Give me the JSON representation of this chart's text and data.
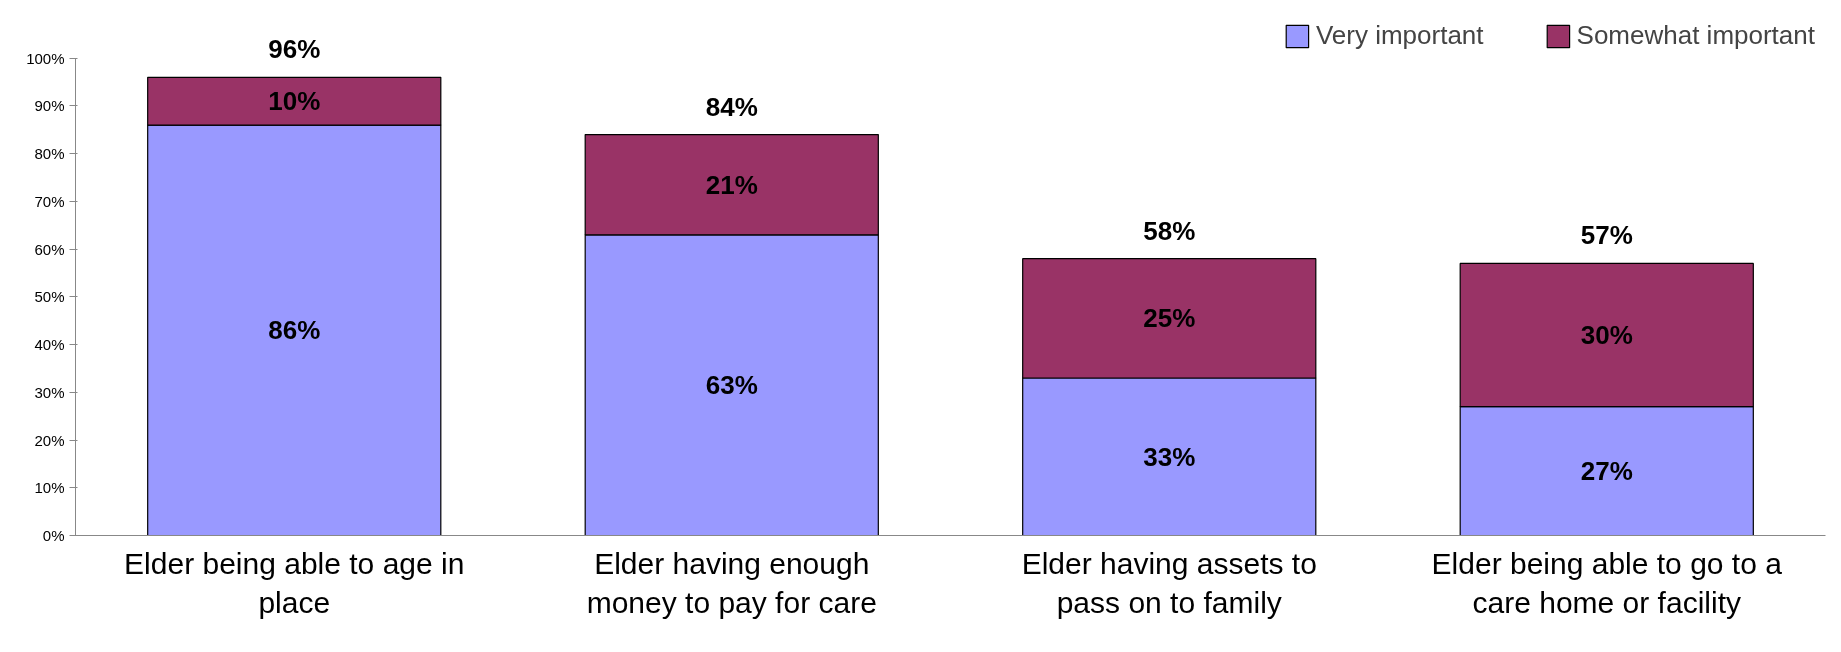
{
  "chart_data": {
    "type": "bar",
    "stacked": true,
    "categories": [
      "Elder being able to age in\nplace",
      "Elder having enough\nmoney to pay for care",
      "Elder having assets to\npass on to family",
      "Elder being able to go to a\ncare home or facility"
    ],
    "series": [
      {
        "name": "Very important",
        "color": "#9999ff",
        "values": [
          86,
          63,
          33,
          27
        ],
        "value_labels": [
          "86%",
          "63%",
          "33%",
          "27%"
        ]
      },
      {
        "name": "Somewhat important",
        "color": "#993366",
        "values": [
          10,
          21,
          25,
          30
        ],
        "value_labels": [
          "10%",
          "21%",
          "25%",
          "30%"
        ]
      }
    ],
    "totals": [
      "96%",
      "84%",
      "58%",
      "57%"
    ],
    "ylim": [
      0,
      100
    ],
    "yticks": [
      {
        "value": 0,
        "label": "0%"
      },
      {
        "value": 10,
        "label": "10%"
      },
      {
        "value": 20,
        "label": "20%"
      },
      {
        "value": 30,
        "label": "30%"
      },
      {
        "value": 40,
        "label": "40%"
      },
      {
        "value": 50,
        "label": "50%"
      },
      {
        "value": 60,
        "label": "60%"
      },
      {
        "value": 70,
        "label": "70%"
      },
      {
        "value": 80,
        "label": "80%"
      },
      {
        "value": 90,
        "label": "90%"
      },
      {
        "value": 100,
        "label": "100%"
      }
    ],
    "grid": false,
    "legend": "top right"
  }
}
